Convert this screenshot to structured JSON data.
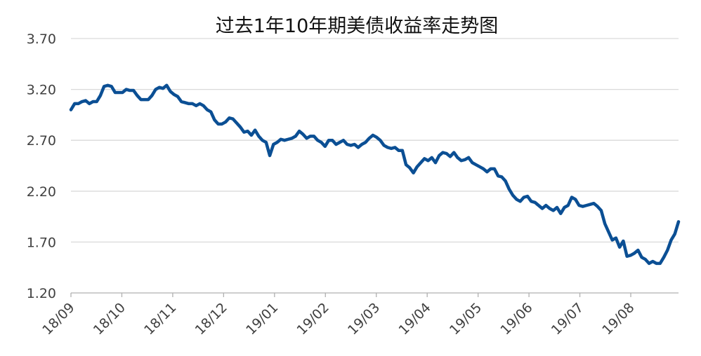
{
  "chart_data": {
    "type": "line",
    "title": "过去1年10年期美债收益率走势图",
    "xlabel": "",
    "ylabel": "",
    "ylim": [
      1.2,
      3.7
    ],
    "y_ticks": [
      "3.70",
      "3.20",
      "2.70",
      "2.20",
      "1.70",
      "1.20"
    ],
    "x_tick_labels": [
      "18/09",
      "18/10",
      "18/11",
      "18/12",
      "19/01",
      "19/02",
      "19/03",
      "19/04",
      "19/05",
      "19/06",
      "19/07",
      "19/08"
    ],
    "grid": true,
    "legend": "none",
    "line_color": "#0b4f94",
    "grid_color": "#d9d9d9",
    "series": [
      {
        "name": "",
        "points": [
          [
            "18/09",
            3.0
          ],
          [
            "18/09",
            3.06
          ],
          [
            "18/09",
            3.06
          ],
          [
            "18/09",
            3.08
          ],
          [
            "18/09",
            3.09
          ],
          [
            "18/09",
            3.06
          ],
          [
            "18/09",
            3.08
          ],
          [
            "18/09",
            3.08
          ],
          [
            "18/09",
            3.14
          ],
          [
            "18/09",
            3.23
          ],
          [
            "18/09",
            3.24
          ],
          [
            "18/09",
            3.23
          ],
          [
            "18/09",
            3.17
          ],
          [
            "18/09",
            3.17
          ],
          [
            "18/09",
            3.17
          ],
          [
            "18/10",
            3.2
          ],
          [
            "18/10",
            3.19
          ],
          [
            "18/10",
            3.19
          ],
          [
            "18/10",
            3.14
          ],
          [
            "18/10",
            3.1
          ],
          [
            "18/10",
            3.1
          ],
          [
            "18/10",
            3.1
          ],
          [
            "18/10",
            3.14
          ],
          [
            "18/10",
            3.2
          ],
          [
            "18/10",
            3.22
          ],
          [
            "18/10",
            3.21
          ],
          [
            "18/10",
            3.24
          ],
          [
            "18/10",
            3.18
          ],
          [
            "18/10",
            3.15
          ],
          [
            "18/10",
            3.13
          ],
          [
            "18/11",
            3.08
          ],
          [
            "18/11",
            3.07
          ],
          [
            "18/11",
            3.06
          ],
          [
            "18/11",
            3.06
          ],
          [
            "18/11",
            3.04
          ],
          [
            "18/11",
            3.06
          ],
          [
            "18/11",
            3.04
          ],
          [
            "18/11",
            3.0
          ],
          [
            "18/11",
            2.98
          ],
          [
            "18/11",
            2.9
          ],
          [
            "18/11",
            2.86
          ],
          [
            "18/11",
            2.86
          ],
          [
            "18/11",
            2.88
          ],
          [
            "18/11",
            2.92
          ],
          [
            "18/11",
            2.91
          ],
          [
            "18/12",
            2.87
          ],
          [
            "18/12",
            2.83
          ],
          [
            "18/12",
            2.78
          ],
          [
            "18/12",
            2.79
          ],
          [
            "18/12",
            2.75
          ],
          [
            "18/12",
            2.8
          ],
          [
            "18/12",
            2.74
          ],
          [
            "18/12",
            2.7
          ],
          [
            "18/12",
            2.68
          ],
          [
            "18/12",
            2.55
          ],
          [
            "18/12",
            2.66
          ],
          [
            "18/12",
            2.68
          ],
          [
            "18/12",
            2.71
          ],
          [
            "18/12",
            2.7
          ],
          [
            "18/12",
            2.71
          ],
          [
            "19/01",
            2.72
          ],
          [
            "19/01",
            2.74
          ],
          [
            "19/01",
            2.79
          ],
          [
            "19/01",
            2.76
          ],
          [
            "19/01",
            2.72
          ],
          [
            "19/01",
            2.74
          ],
          [
            "19/01",
            2.74
          ],
          [
            "19/01",
            2.7
          ],
          [
            "19/01",
            2.68
          ],
          [
            "19/01",
            2.64
          ],
          [
            "19/01",
            2.7
          ],
          [
            "19/01",
            2.7
          ],
          [
            "19/01",
            2.66
          ],
          [
            "19/01",
            2.68
          ],
          [
            "19/01",
            2.7
          ],
          [
            "19/02",
            2.66
          ],
          [
            "19/02",
            2.65
          ],
          [
            "19/02",
            2.66
          ],
          [
            "19/02",
            2.63
          ],
          [
            "19/02",
            2.66
          ],
          [
            "19/02",
            2.68
          ],
          [
            "19/02",
            2.72
          ],
          [
            "19/02",
            2.75
          ],
          [
            "19/02",
            2.73
          ],
          [
            "19/02",
            2.7
          ],
          [
            "19/02",
            2.65
          ],
          [
            "19/02",
            2.63
          ],
          [
            "19/02",
            2.62
          ],
          [
            "19/02",
            2.63
          ],
          [
            "19/02",
            2.6
          ],
          [
            "19/03",
            2.6
          ],
          [
            "19/03",
            2.46
          ],
          [
            "19/03",
            2.43
          ],
          [
            "19/03",
            2.38
          ],
          [
            "19/03",
            2.44
          ],
          [
            "19/03",
            2.48
          ],
          [
            "19/03",
            2.52
          ],
          [
            "19/03",
            2.5
          ],
          [
            "19/03",
            2.53
          ],
          [
            "19/03",
            2.48
          ],
          [
            "19/03",
            2.55
          ],
          [
            "19/03",
            2.58
          ],
          [
            "19/03",
            2.57
          ],
          [
            "19/03",
            2.54
          ],
          [
            "19/03",
            2.58
          ],
          [
            "19/04",
            2.53
          ],
          [
            "19/04",
            2.5
          ],
          [
            "19/04",
            2.51
          ],
          [
            "19/04",
            2.53
          ],
          [
            "19/04",
            2.48
          ],
          [
            "19/04",
            2.46
          ],
          [
            "19/04",
            2.44
          ],
          [
            "19/04",
            2.42
          ],
          [
            "19/04",
            2.39
          ],
          [
            "19/04",
            2.42
          ],
          [
            "19/04",
            2.42
          ],
          [
            "19/04",
            2.35
          ],
          [
            "19/04",
            2.34
          ],
          [
            "19/04",
            2.3
          ],
          [
            "19/04",
            2.22
          ],
          [
            "19/05",
            2.16
          ],
          [
            "19/05",
            2.12
          ],
          [
            "19/05",
            2.1
          ],
          [
            "19/05",
            2.14
          ],
          [
            "19/05",
            2.15
          ],
          [
            "19/05",
            2.1
          ],
          [
            "19/05",
            2.09
          ],
          [
            "19/05",
            2.06
          ],
          [
            "19/05",
            2.03
          ],
          [
            "19/05",
            2.06
          ],
          [
            "19/05",
            2.03
          ],
          [
            "19/05",
            2.01
          ],
          [
            "19/05",
            2.04
          ],
          [
            "19/05",
            1.98
          ],
          [
            "19/05",
            2.04
          ],
          [
            "19/06",
            2.06
          ],
          [
            "19/06",
            2.14
          ],
          [
            "19/06",
            2.12
          ],
          [
            "19/06",
            2.06
          ],
          [
            "19/06",
            2.05
          ],
          [
            "19/06",
            2.06
          ],
          [
            "19/06",
            2.07
          ],
          [
            "19/06",
            2.08
          ],
          [
            "19/06",
            2.05
          ],
          [
            "19/06",
            2.01
          ],
          [
            "19/06",
            1.88
          ],
          [
            "19/06",
            1.8
          ],
          [
            "19/06",
            1.72
          ],
          [
            "19/06",
            1.74
          ],
          [
            "19/06",
            1.65
          ],
          [
            "19/07",
            1.71
          ],
          [
            "19/07",
            1.56
          ],
          [
            "19/07",
            1.57
          ],
          [
            "19/07",
            1.59
          ],
          [
            "19/07",
            1.62
          ],
          [
            "19/07",
            1.55
          ],
          [
            "19/07",
            1.53
          ],
          [
            "19/07",
            1.49
          ],
          [
            "19/07",
            1.51
          ],
          [
            "19/07",
            1.49
          ],
          [
            "19/07",
            1.49
          ],
          [
            "19/07",
            1.55
          ],
          [
            "19/07",
            1.62
          ],
          [
            "19/07",
            1.72
          ],
          [
            "19/07",
            1.78
          ],
          [
            "19/08",
            1.9
          ]
        ]
      }
    ]
  }
}
